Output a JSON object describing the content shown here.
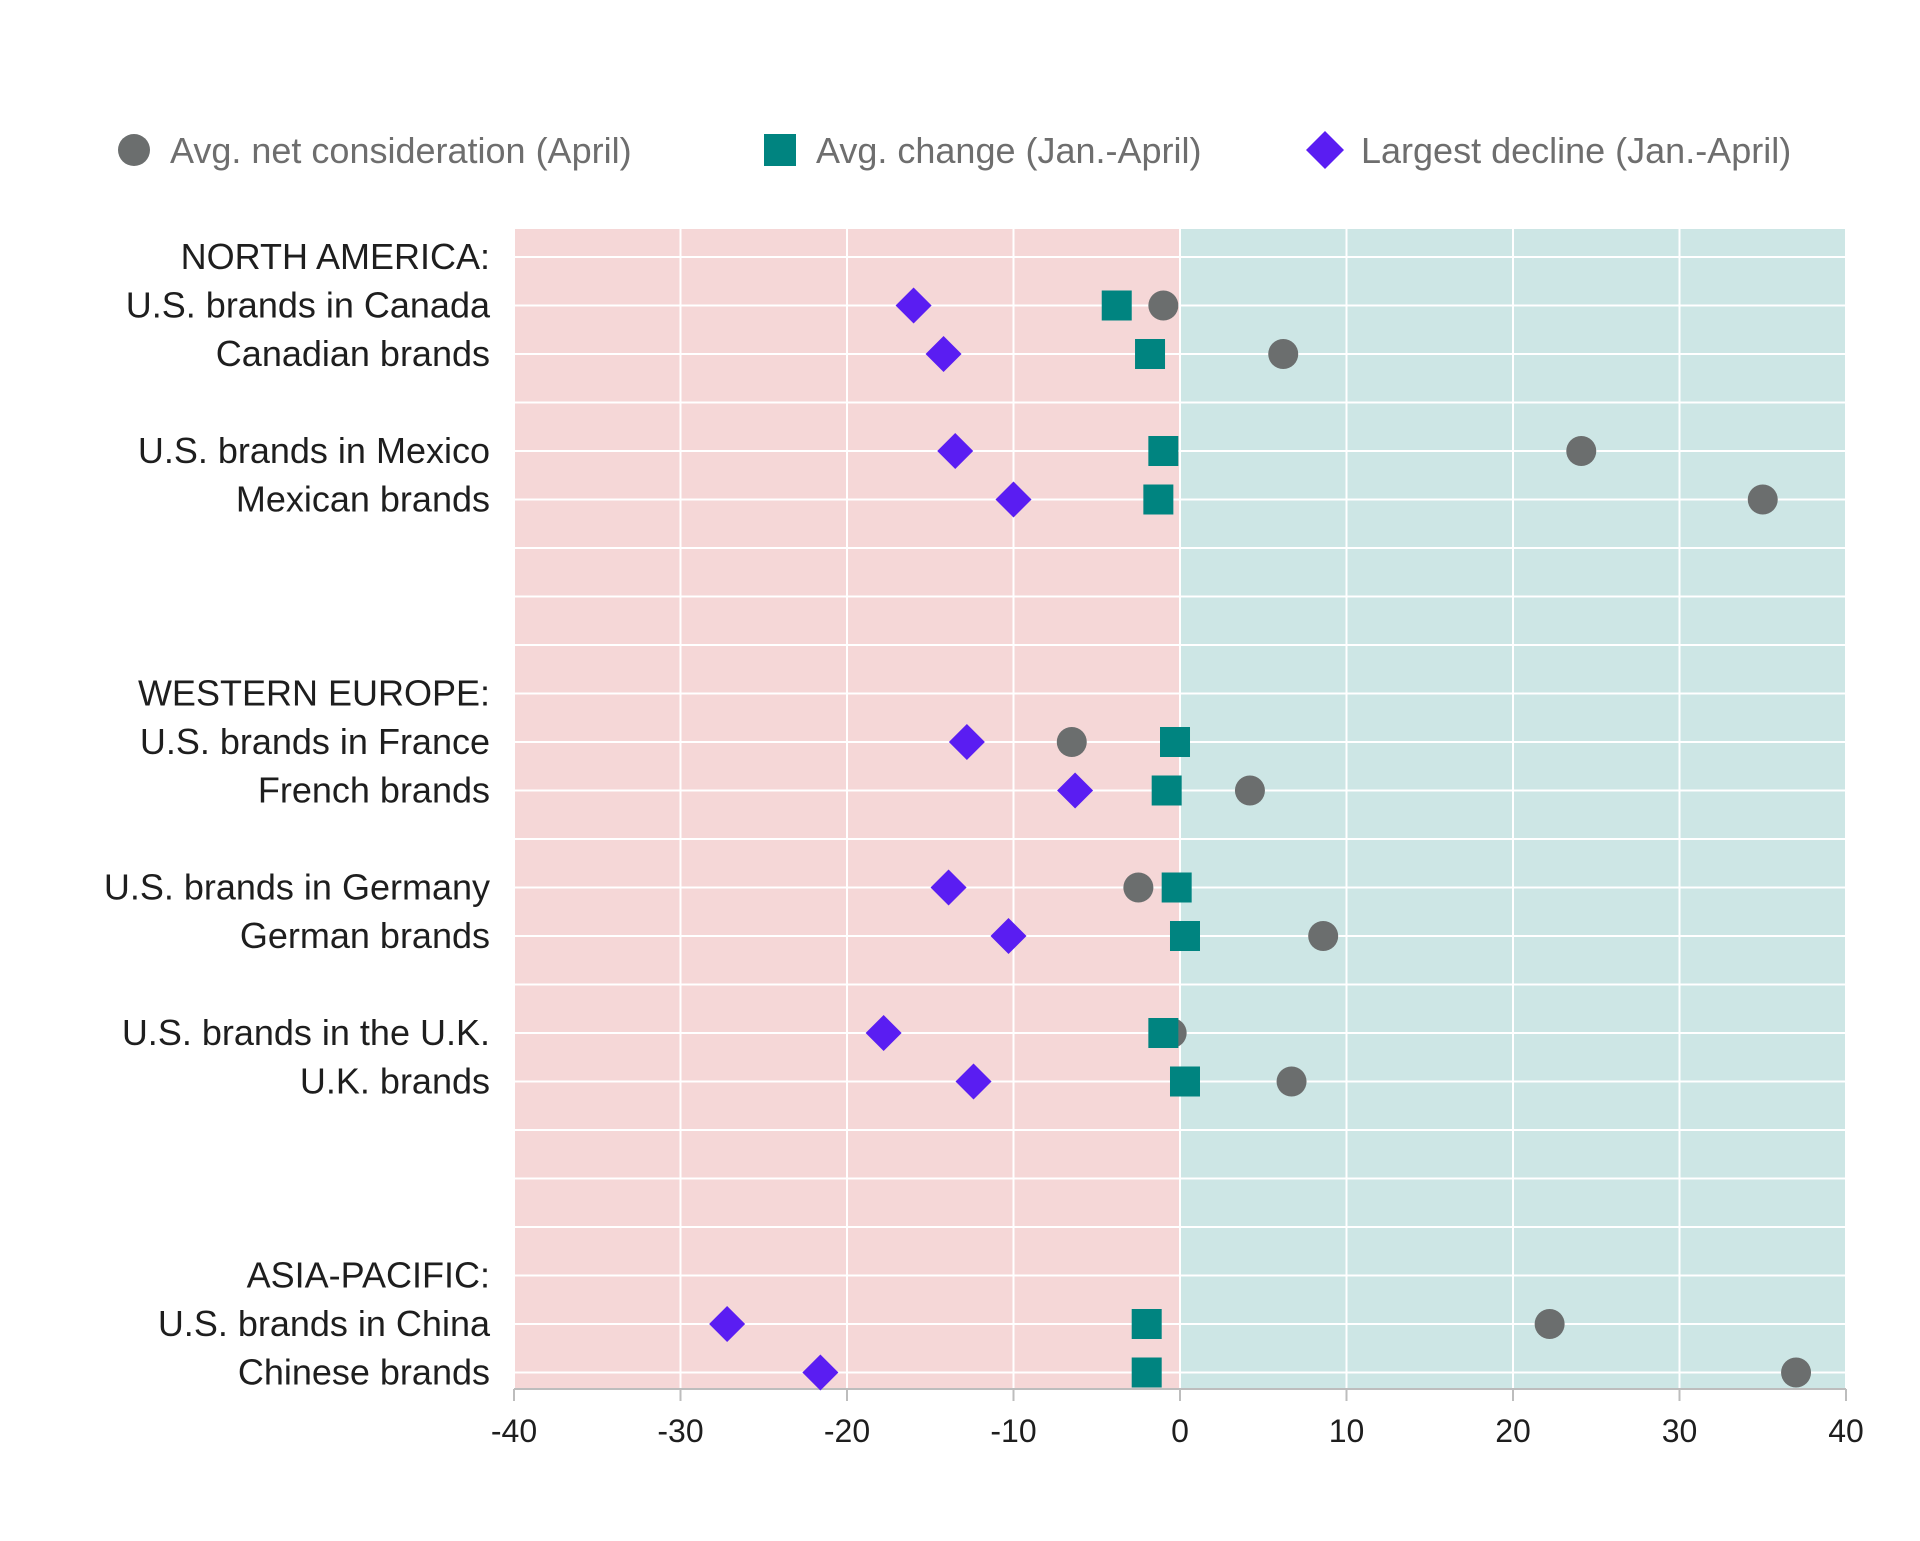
{
  "chart_data": {
    "type": "scatter",
    "xlim": [
      -40,
      40
    ],
    "xticks": [
      "-40",
      "-30",
      "-20",
      "-10",
      "0",
      "10",
      "20",
      "30",
      "40"
    ],
    "legend_position": "top",
    "grid": true,
    "background_bands": {
      "negative": "#f5d7d7",
      "positive": "#cde6e5"
    },
    "categories": [
      "NORTH AMERICA:",
      "U.S. brands in Canada",
      "Canadian brands",
      "",
      "U.S. brands in Mexico",
      "Mexican brands",
      "",
      "",
      "",
      "WESTERN EUROPE:",
      "U.S. brands in France",
      "French brands",
      "",
      "U.S. brands in Germany",
      "German brands",
      "",
      "U.S. brands in the U.K.",
      "U.K. brands",
      "",
      "",
      "",
      "ASIA-PACIFIC:",
      "U.S. brands in China",
      "Chinese brands"
    ],
    "series": [
      {
        "name": "Avg. net consideration (April)",
        "marker": "circle",
        "color": "#6b6e6e",
        "values": [
          null,
          -1,
          6.2,
          null,
          24.1,
          35,
          null,
          null,
          null,
          null,
          -6.5,
          4.2,
          null,
          -2.5,
          8.6,
          null,
          -0.5,
          6.7,
          null,
          null,
          null,
          null,
          22.2,
          37
        ]
      },
      {
        "name": "Avg. change (Jan.-April)",
        "marker": "square",
        "color": "#008480",
        "values": [
          null,
          -3.8,
          -1.8,
          null,
          -1,
          -1.3,
          null,
          null,
          null,
          null,
          -0.3,
          -0.8,
          null,
          -0.2,
          0.3,
          null,
          -1,
          0.3,
          null,
          null,
          null,
          null,
          -2,
          -2
        ]
      },
      {
        "name": "Largest decline (Jan.-April)",
        "marker": "diamond",
        "color": "#5a1df2",
        "values": [
          null,
          -16,
          -14.2,
          null,
          -13.5,
          -10,
          null,
          null,
          null,
          null,
          -12.8,
          -6.3,
          null,
          -13.9,
          -10.3,
          null,
          -17.8,
          -12.4,
          null,
          null,
          null,
          null,
          -27.2,
          -21.6
        ]
      }
    ]
  }
}
